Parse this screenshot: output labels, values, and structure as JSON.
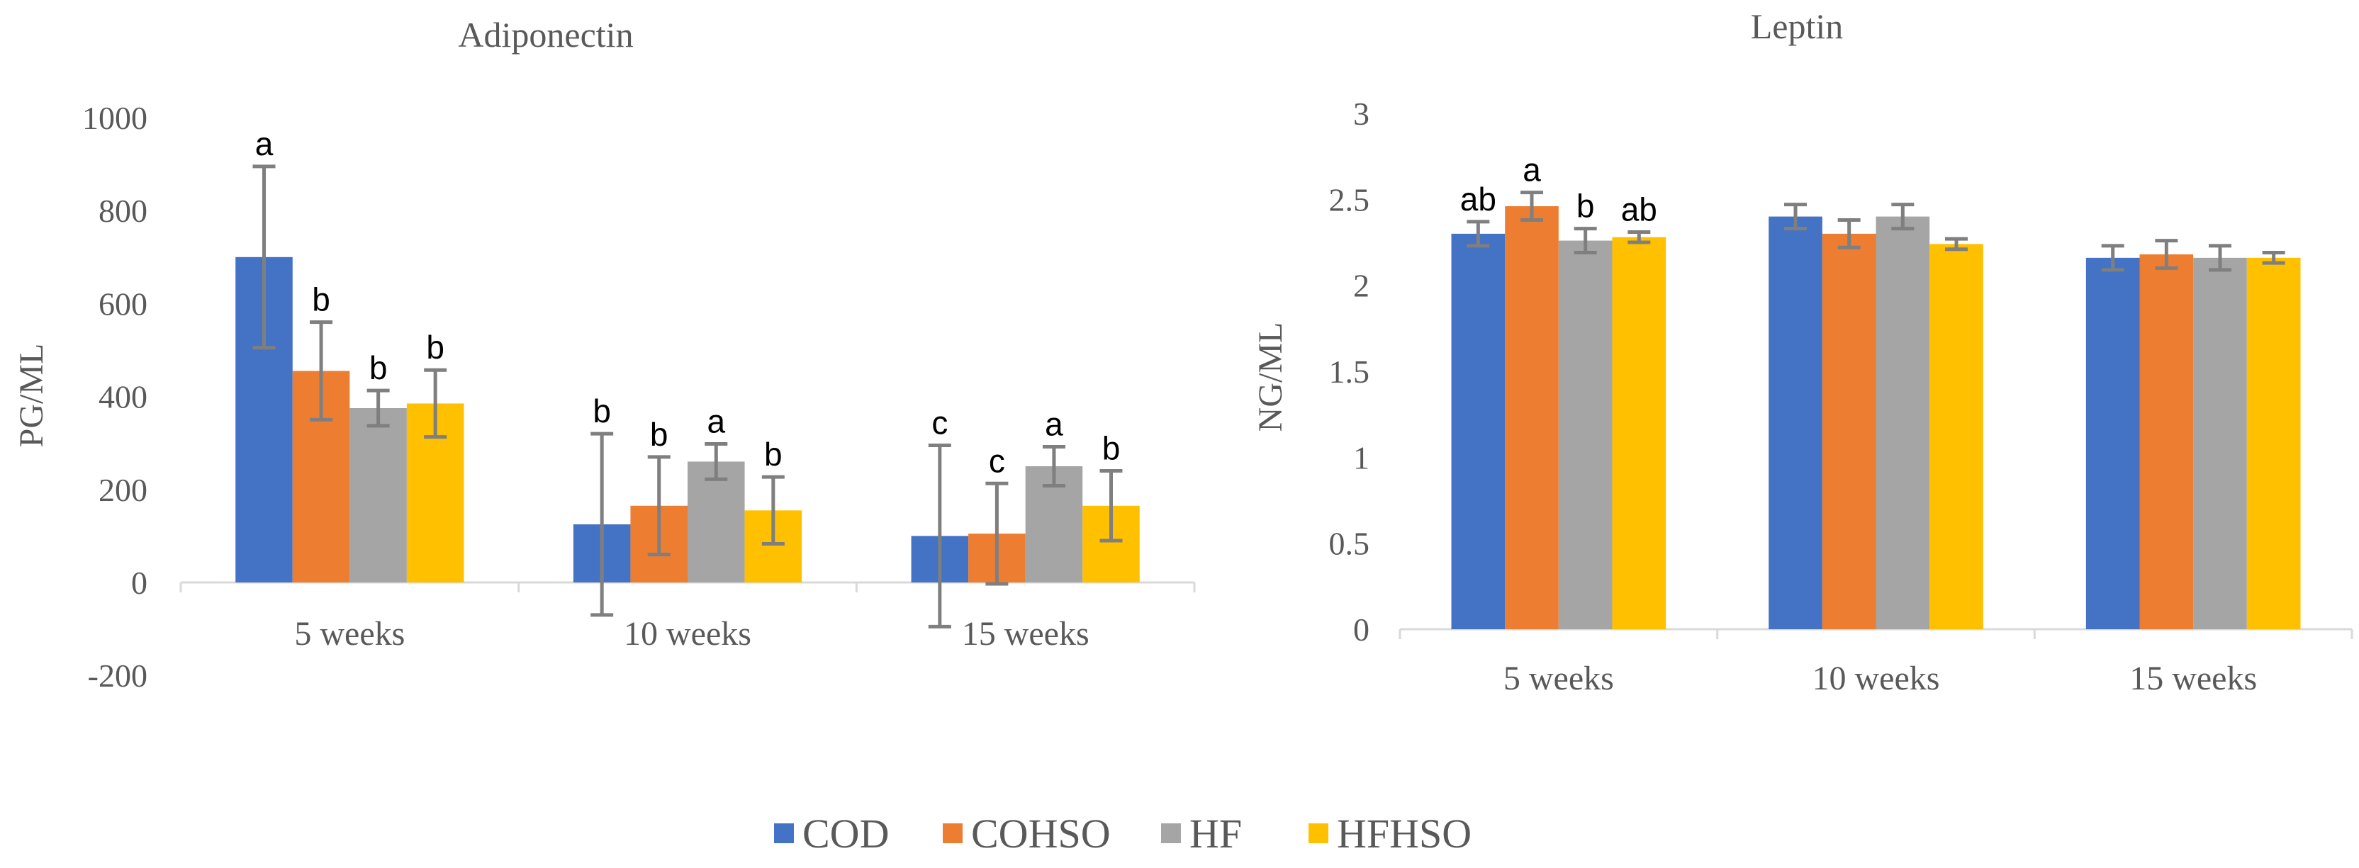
{
  "series_names": [
    "COD",
    "COHSO",
    "HF",
    "HFHSO"
  ],
  "colors": {
    "COD": "#4472C4",
    "COHSO": "#ED7D31",
    "HF": "#A5A5A5",
    "HFHSO": "#FFC000",
    "axis": "#D9D9D9",
    "text": "#595959",
    "error_bar": "#7F7F7F",
    "sig_text": "#000000"
  },
  "chart_data": [
    {
      "type": "bar",
      "title": "Adiponectin",
      "xlabel": "",
      "ylabel": "PG/ML",
      "ylim": [
        -200,
        1000
      ],
      "yticks": [
        -200,
        0,
        200,
        400,
        600,
        800,
        1000
      ],
      "ytick_labels": [
        "-200",
        "0",
        "200",
        "400",
        "600",
        "800",
        "1000"
      ],
      "grid": false,
      "categories": [
        "5 weeks",
        "10 weeks",
        "15 weeks"
      ],
      "series": [
        {
          "name": "COD",
          "values": [
            700,
            125,
            100
          ],
          "errors": [
            195,
            195,
            195
          ],
          "labels": [
            "a",
            "b",
            "c"
          ]
        },
        {
          "name": "COHSO",
          "values": [
            455,
            165,
            105
          ],
          "errors": [
            105,
            105,
            108
          ],
          "labels": [
            "b",
            "b",
            "c"
          ]
        },
        {
          "name": "HF",
          "values": [
            375,
            260,
            250
          ],
          "errors": [
            38,
            38,
            42
          ],
          "labels": [
            "b",
            "a",
            "a"
          ]
        },
        {
          "name": "HFHSO",
          "values": [
            385,
            155,
            165
          ],
          "errors": [
            72,
            72,
            75
          ],
          "labels": [
            "b",
            "b",
            "b"
          ]
        }
      ]
    },
    {
      "type": "bar",
      "title": "Leptin",
      "xlabel": "",
      "ylabel": "NG/ML",
      "ylim": [
        0,
        3
      ],
      "yticks": [
        0,
        0.5,
        1,
        1.5,
        2,
        2.5,
        3
      ],
      "ytick_labels": [
        "0",
        "0.5",
        "1",
        "1.5",
        "2",
        "2.5",
        "3"
      ],
      "grid": false,
      "categories": [
        "5 weeks",
        "10 weeks",
        "15 weeks"
      ],
      "series": [
        {
          "name": "COD",
          "values": [
            2.3,
            2.4,
            2.16
          ],
          "errors": [
            0.07,
            0.07,
            0.07
          ],
          "labels": [
            "ab",
            "",
            ""
          ]
        },
        {
          "name": "COHSO",
          "values": [
            2.46,
            2.3,
            2.18
          ],
          "errors": [
            0.08,
            0.08,
            0.08
          ],
          "labels": [
            "a",
            "",
            ""
          ]
        },
        {
          "name": "HF",
          "values": [
            2.26,
            2.4,
            2.16
          ],
          "errors": [
            0.07,
            0.07,
            0.07
          ],
          "labels": [
            "b",
            "",
            ""
          ]
        },
        {
          "name": "HFHSO",
          "values": [
            2.28,
            2.24,
            2.16
          ],
          "errors": [
            0.03,
            0.03,
            0.03
          ],
          "labels": [
            "ab",
            "",
            ""
          ]
        }
      ]
    }
  ]
}
